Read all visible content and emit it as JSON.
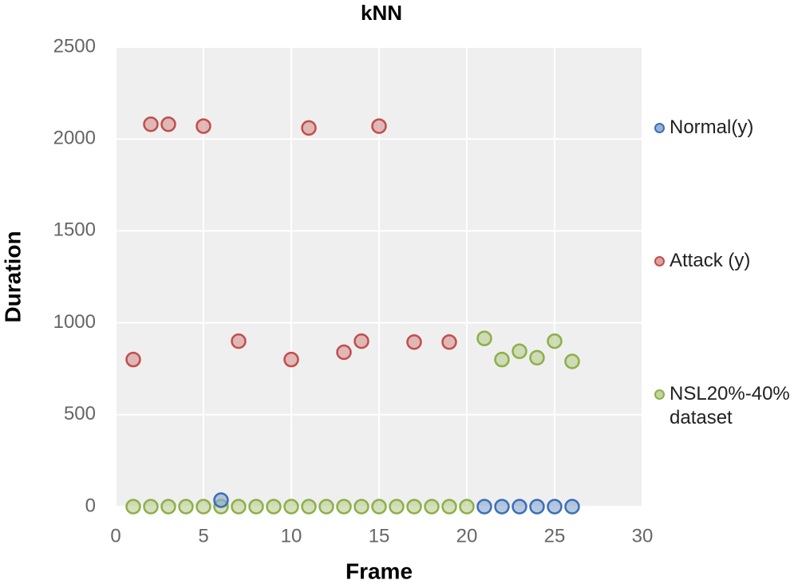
{
  "chart_data": {
    "type": "scatter",
    "title": "kNN",
    "x_label": "Frame",
    "y_label": "Duration",
    "xlim": [
      0,
      30
    ],
    "xticks": [
      0,
      5,
      10,
      15,
      20,
      25,
      30
    ],
    "ylim": [
      0,
      2500
    ],
    "yticks": [
      0,
      500,
      1000,
      1500,
      2000,
      2500
    ],
    "grid": true,
    "legend": "right",
    "series": [
      {
        "name": "Normal(y)",
        "color": "#3d6fb5",
        "x": [
          6,
          21,
          22,
          23,
          24,
          25,
          26
        ],
        "values": [
          35,
          0,
          0,
          0,
          0,
          0,
          0
        ]
      },
      {
        "name": "Attack (y)",
        "color": "#c0504d",
        "x": [
          1,
          2,
          3,
          5,
          7,
          10,
          11,
          13,
          14,
          15,
          17,
          19
        ],
        "values": [
          800,
          2080,
          2080,
          2070,
          900,
          800,
          2060,
          840,
          900,
          2070,
          895,
          895
        ]
      },
      {
        "name": "NSL20%-40% dataset",
        "color": "#8db04a",
        "x": [
          1,
          2,
          3,
          4,
          5,
          6,
          7,
          8,
          9,
          10,
          11,
          12,
          13,
          14,
          15,
          16,
          17,
          18,
          19,
          20,
          21,
          22,
          23,
          24,
          25,
          26
        ],
        "values": [
          0,
          0,
          0,
          0,
          0,
          0,
          0,
          0,
          0,
          0,
          0,
          0,
          0,
          0,
          0,
          0,
          0,
          0,
          0,
          0,
          915,
          800,
          845,
          810,
          900,
          790
        ]
      }
    ]
  }
}
